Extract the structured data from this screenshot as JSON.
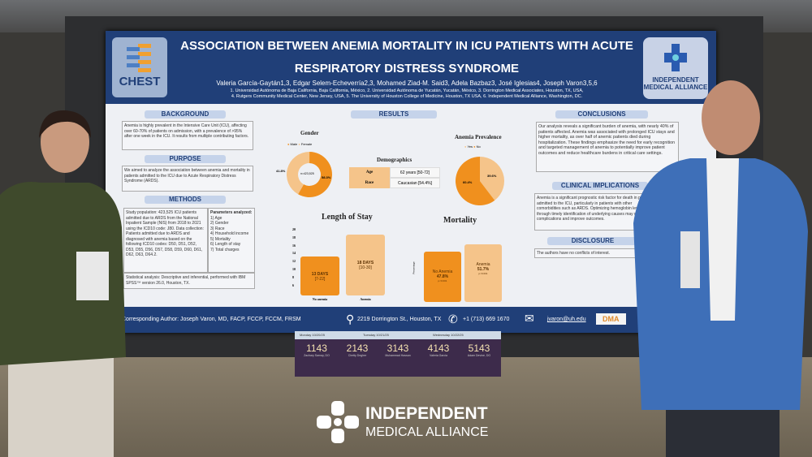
{
  "poster": {
    "title_line1": "ASSOCIATION BETWEEN ANEMIA MORTALITY IN ICU PATIENTS WITH ACUTE",
    "title_line2": "RESPIRATORY DISTRESS SYNDROME",
    "authors": "Valeria García-Gaytán1,3, Edgar Selem-Echeverría2,3, Mohamed Ziad-M. Said3, Adela Bazbaz3, José Iglesias4, Joseph Varon3,5,6",
    "affiliations1": "1. Universidad Autónoma de Baja California, Baja California, México, 2. Universidad Autónoma de Yucatán, Yucatán, México, 3. Dorrington Medical Associates, Houston, TX, USA,",
    "affiliations2": "4. Rutgers Community Medical Center, New Jersey, USA, 5. The University of Houston College of Medicine, Houston, TX USA, 6. Independent Medical Alliance, Washington, DC.",
    "logo_left": "CHEST",
    "logo_right": "INDEPENDENT MEDICAL ALLIANCE",
    "sections": {
      "background_h": "BACKGROUND",
      "background": "Anemia is highly prevalent in the Intensive Care Unit (ICU), affecting over 60-70% of patients on admission, with a prevalence of >95% after one week in the ICU. It results from multiple contributing factors.",
      "purpose_h": "PURPOSE",
      "purpose": "We aimed to analyze the association between anemia and mortality in patients admitted to the ICU due to Acute Respiratory Distress Syndrome (ARDS).",
      "methods_h": "METHODS",
      "methods": "Study population: 423,525 ICU patients admitted due to ARDS from the National Inpatient Sample (NIS) from 2018 to 2021 using the ICD10 code: J80. Data collection: Patients admitted due to ARDS and diagnosed with anemia based on the following ICD10 codes: D50, D51, D52, D53, D55, D56, D57, D58, D59, D60, D61, D62, D63, D64.2.",
      "params_h": "Parameters analyzed:",
      "params": [
        "1) Age",
        "2) Gender",
        "3) Race",
        "4) Household income",
        "5) Mortality",
        "6) Length of stay",
        "7) Total charges"
      ],
      "stats": "Statistical analysis: Descriptive and inferential, performed with IBM SPSS™ version 26.0, Houston, TX.",
      "results_h": "RESULTS",
      "conclusions_h": "CONCLUSIONS",
      "conclusions": "Our analysis reveals a significant burden of anemia, with nearly 40% of patients affected. Anemia was associated with prolonged ICU stays and higher mortality, as over half of anemic patients died during hospitalization. These findings emphasize the need for early recognition and targeted management of anemia to potentially improve patient outcomes and reduce healthcare burdens in critical care settings.",
      "clinical_h": "CLINICAL IMPLICATIONS",
      "clinical": "Anemia is a significant prognostic risk factor for death in patients admitted to the ICU, particularly in patients with other comorbidities such as ARDS. Optimizing hemoglobin levels through timely identification of underlying causes may mitigate complications and improve outcomes.",
      "disclosure_h": "DISCLOSURE",
      "disclosure": "The authors have no conflicts of interest."
    },
    "gender": {
      "title": "Gender",
      "legend": [
        "Male",
        "Female"
      ],
      "center": "n=423,525",
      "male_pct": 58.3,
      "female_pct": 41.8,
      "male_label": "58.3%",
      "female_label": "41.8%"
    },
    "demographics": {
      "title": "Demographics",
      "rows": [
        {
          "k": "Age",
          "v": "62 years [50-72]"
        },
        {
          "k": "Race",
          "v": "Caucasian [54.4%]"
        }
      ]
    },
    "prevalence": {
      "title": "Anemia Prevalence",
      "legend": [
        "Yes",
        "No"
      ],
      "yes_pct": 39.6,
      "no_pct": 60.4,
      "yes_label": "39.6%",
      "no_label": "60.4%"
    },
    "los": {
      "title": "Length of Stay",
      "ticks": [
        "20",
        "18",
        "16",
        "14",
        "12",
        "10",
        "8",
        "6"
      ],
      "bars": [
        {
          "label": "No anemia",
          "value": "13 DAYS",
          "range": "[7-22]",
          "days": 13
        },
        {
          "label": "Anemia",
          "value": "18 DAYS",
          "range": "[10-30]",
          "days": 18
        }
      ]
    },
    "mortality": {
      "title": "Mortality",
      "ylabel": "Percentage",
      "bars": [
        {
          "name": "No Anemia",
          "pct_label": "47.8%",
          "pct": 47.8,
          "p": "p<0.001"
        },
        {
          "name": "Anemia",
          "pct_label": "51.7%",
          "pct": 51.7,
          "p": "p<0.001"
        }
      ]
    },
    "footer": {
      "author": "Corresponding Author: Joseph Varon, MD, FACP, FCCP, FCCM, FRSM",
      "address": "2219 Dorrington St., Houston, TX",
      "phone": "+1 (713) 669 1670",
      "email": "jvaron@uh.edu",
      "logo": "DMA"
    }
  },
  "placard": {
    "days": [
      "Monday 10/20/25",
      "Tuesday 10/21/25",
      "Wednesday 10/22/25"
    ],
    "slots": [
      {
        "n": "1143",
        "name": "Zachary Sarnay, DO"
      },
      {
        "n": "2143",
        "name": "Chetty Degher"
      },
      {
        "n": "3143",
        "name": "Muhammad Hassan"
      },
      {
        "n": "4143",
        "name": "Valeria Garcia"
      },
      {
        "n": "5143",
        "name": "Adam Devine, DO"
      }
    ]
  },
  "watermark": {
    "line1": "INDEPENDENT",
    "line2": "MEDICAL ALLIANCE"
  },
  "colors": {
    "navy": "#203f78",
    "orange": "#f0901e",
    "light_orange": "#f5c48a",
    "placard": "#3d2b4b"
  }
}
